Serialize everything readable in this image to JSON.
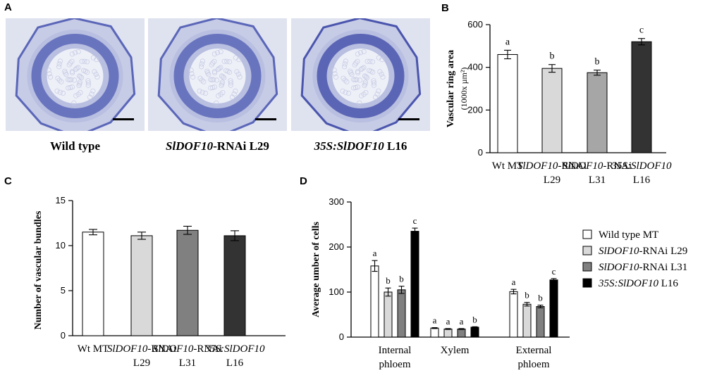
{
  "panels": {
    "A": {
      "letter": "A",
      "micrographs": [
        {
          "caption_italic": "",
          "caption_rest": "Wild type",
          "tone": "#5a66b8"
        },
        {
          "caption_italic": "SlDOF10",
          "caption_rest": "-RNAi  L29",
          "tone": "#5a66b8"
        },
        {
          "caption_italic": "35S:SlDOF10",
          "caption_rest": "  L16",
          "tone": "#4a55ad"
        }
      ]
    },
    "B": {
      "letter": "B"
    },
    "C": {
      "letter": "C"
    },
    "D": {
      "letter": "D"
    }
  },
  "chart_data": [
    {
      "panel": "B",
      "type": "bar",
      "categories": [
        [
          "Wt MT"
        ],
        [
          "SlDOF10-RNAi",
          "L29"
        ],
        [
          "SlDOF10-RNAi",
          "L31"
        ],
        [
          "35S:SlDOF10",
          "L16"
        ]
      ],
      "values": [
        460,
        395,
        375,
        520
      ],
      "errors": [
        20,
        18,
        12,
        15
      ],
      "letters": [
        "a",
        "b",
        "b",
        "c"
      ],
      "colors": [
        "#ffffff",
        "#d9d9d9",
        "#a6a6a6",
        "#333333"
      ],
      "ylabel": "Vascular ring area",
      "ylabel2": "(1000x µm²)",
      "ylim": [
        0,
        600
      ],
      "yticks": [
        0,
        200,
        400,
        600
      ]
    },
    {
      "panel": "C",
      "type": "bar",
      "categories": [
        [
          "Wt MT"
        ],
        [
          "SlDOF10-RNAi",
          "L29"
        ],
        [
          "SlDOF10-RNAi",
          "L31"
        ],
        [
          "35S:SlDOF10",
          "L16"
        ]
      ],
      "values": [
        11.5,
        11.1,
        11.7,
        11.1
      ],
      "errors": [
        0.3,
        0.4,
        0.45,
        0.55
      ],
      "colors": [
        "#ffffff",
        "#d9d9d9",
        "#808080",
        "#333333"
      ],
      "ylabel": "Number of vascular bundles",
      "ylim": [
        0,
        15
      ],
      "yticks": [
        0,
        5,
        10,
        15
      ]
    },
    {
      "panel": "D",
      "type": "bar",
      "categories": [
        [
          "Internal",
          "phloem"
        ],
        [
          "Xylem"
        ],
        [
          "External",
          "phloem"
        ]
      ],
      "series": [
        {
          "name": "Wild type MT",
          "values": [
            158,
            20,
            101
          ],
          "errors": [
            12,
            1,
            5
          ],
          "letters": [
            "a",
            "a",
            "a"
          ],
          "color": "#ffffff"
        },
        {
          "name": "SlDOF10-RNAi L29",
          "values": [
            100,
            18,
            73
          ],
          "errors": [
            9,
            1,
            4
          ],
          "letters": [
            "b",
            "a",
            "b"
          ],
          "color": "#d9d9d9"
        },
        {
          "name": "SlDOF10-RNAi L31",
          "values": [
            105,
            18,
            68
          ],
          "errors": [
            8,
            1,
            3
          ],
          "letters": [
            "b",
            "a",
            "b"
          ],
          "color": "#808080"
        },
        {
          "name": "35S:SlDOF10 L16",
          "values": [
            235,
            22,
            127
          ],
          "errors": [
            7,
            1,
            3
          ],
          "letters": [
            "c",
            "b",
            "c"
          ],
          "color": "#000000"
        }
      ],
      "ylabel": "Average umber of cells",
      "ylim": [
        0,
        300
      ],
      "yticks": [
        0,
        100,
        200,
        300
      ],
      "legend_position": "right"
    }
  ]
}
